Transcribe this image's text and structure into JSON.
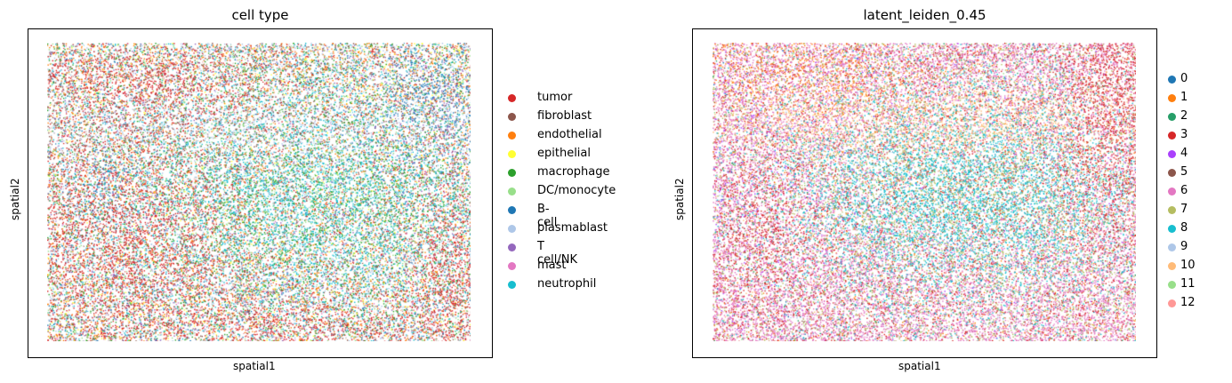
{
  "chart_data": [
    {
      "type": "scatter",
      "title": "cell type",
      "xlabel": "spatial1",
      "ylabel": "spatial2",
      "grid": false,
      "legend_placement": "right",
      "legend": [
        {
          "label": "tumor",
          "color": "#d62728"
        },
        {
          "label": "fibroblast",
          "color": "#8c564b"
        },
        {
          "label": "endothelial",
          "color": "#ff7f0e"
        },
        {
          "label": "epithelial",
          "color": "#ffff33"
        },
        {
          "label": "macrophage",
          "color": "#2ca02c"
        },
        {
          "label": "DC/monocyte",
          "color": "#98df8a"
        },
        {
          "label": "B-cell",
          "color": "#1f77b4"
        },
        {
          "label": "plasmablast",
          "color": "#aec7e8"
        },
        {
          "label": "T cell/NK",
          "color": "#9467bd"
        },
        {
          "label": "mast",
          "color": "#e377c2"
        },
        {
          "label": "neutrophil",
          "color": "#17becf"
        }
      ]
    },
    {
      "type": "scatter",
      "title": "latent_leiden_0.45",
      "xlabel": "spatial1",
      "ylabel": "spatial2",
      "grid": false,
      "legend_placement": "right",
      "legend": [
        {
          "label": "0",
          "color": "#1f77b4"
        },
        {
          "label": "1",
          "color": "#ff7f0e"
        },
        {
          "label": "2",
          "color": "#279e68"
        },
        {
          "label": "3",
          "color": "#d62728"
        },
        {
          "label": "4",
          "color": "#aa40fc"
        },
        {
          "label": "5",
          "color": "#8c564b"
        },
        {
          "label": "6",
          "color": "#e377c2"
        },
        {
          "label": "7",
          "color": "#b5bd61"
        },
        {
          "label": "8",
          "color": "#17becf"
        },
        {
          "label": "9",
          "color": "#aec7e8"
        },
        {
          "label": "10",
          "color": "#ffbb78"
        },
        {
          "label": "11",
          "color": "#98df8a"
        },
        {
          "label": "12",
          "color": "#ff9896"
        }
      ]
    }
  ]
}
